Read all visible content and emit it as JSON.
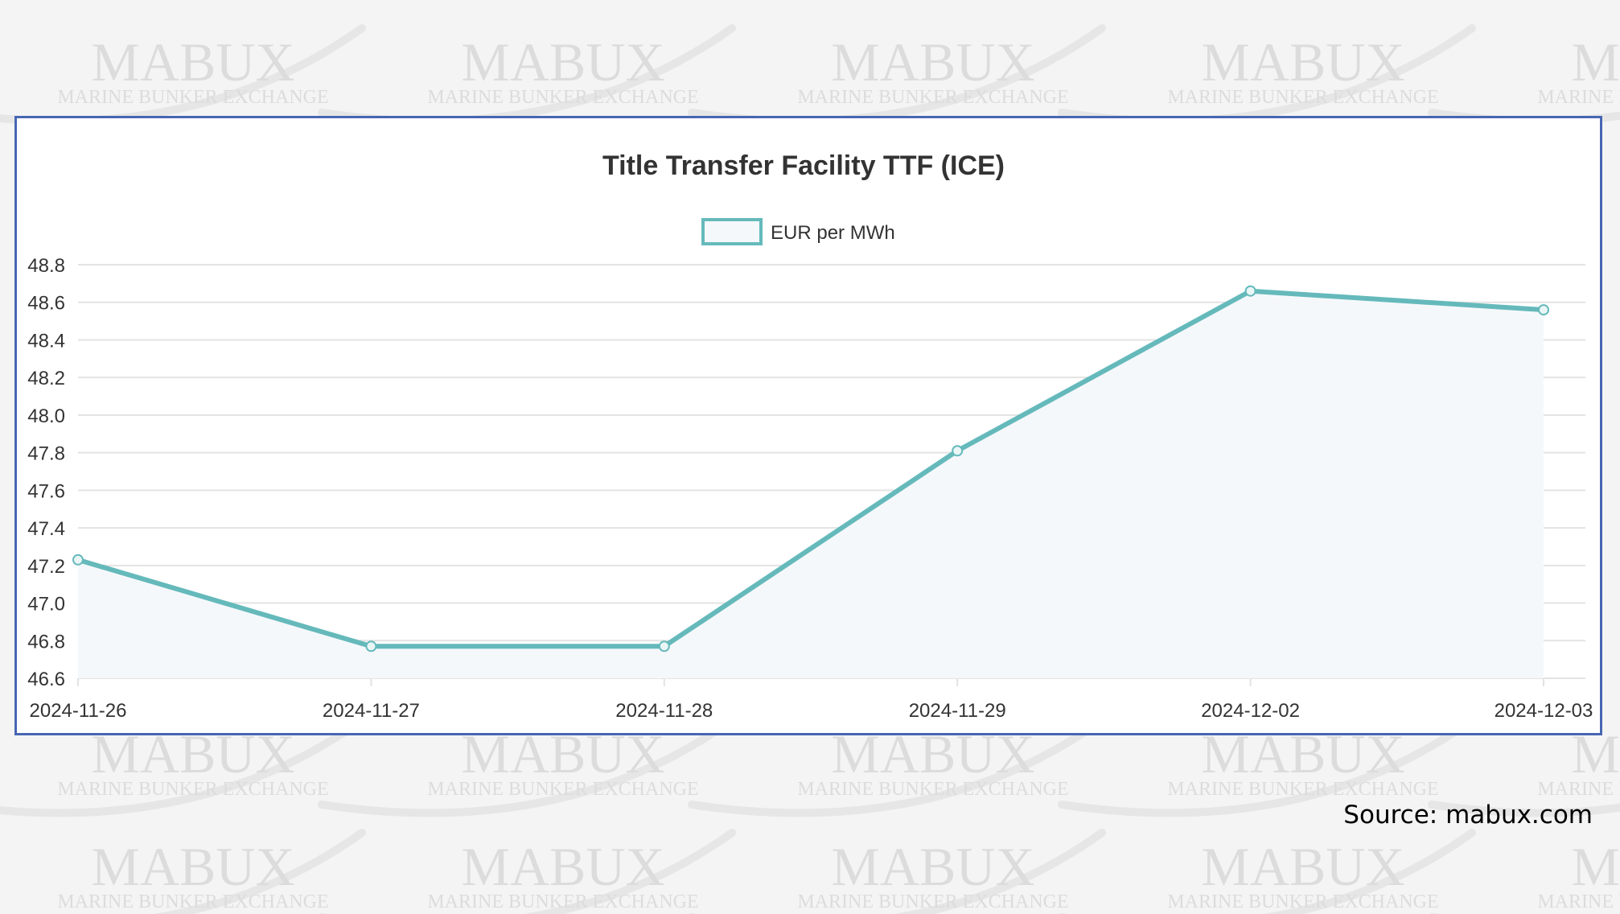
{
  "watermark": {
    "brand": "MABUX",
    "tagline": "MARINE BUNKER EXCHANGE"
  },
  "source_note": "Source: mabux.com",
  "colors": {
    "line": "#65b9bb",
    "fill": "#f5f8fb",
    "grid": "#e3e3e3",
    "panel_border": "#4766b3"
  },
  "chart_data": {
    "type": "line",
    "title": "Title Transfer Facility TTF (ICE)",
    "legend": "top",
    "grid": true,
    "categories": [
      "2024-11-26",
      "2024-11-27",
      "2024-11-28",
      "2024-11-29",
      "2024-12-02",
      "2024-12-03"
    ],
    "series": [
      {
        "name": "EUR per MWh",
        "values": [
          47.23,
          46.77,
          46.77,
          47.81,
          48.66,
          48.56
        ]
      }
    ],
    "ylim": [
      46.6,
      48.8
    ],
    "yticks": [
      "48.8",
      "48.6",
      "48.4",
      "48.2",
      "48.0",
      "47.8",
      "47.6",
      "47.4",
      "47.2",
      "47.0",
      "46.8",
      "46.6"
    ]
  }
}
